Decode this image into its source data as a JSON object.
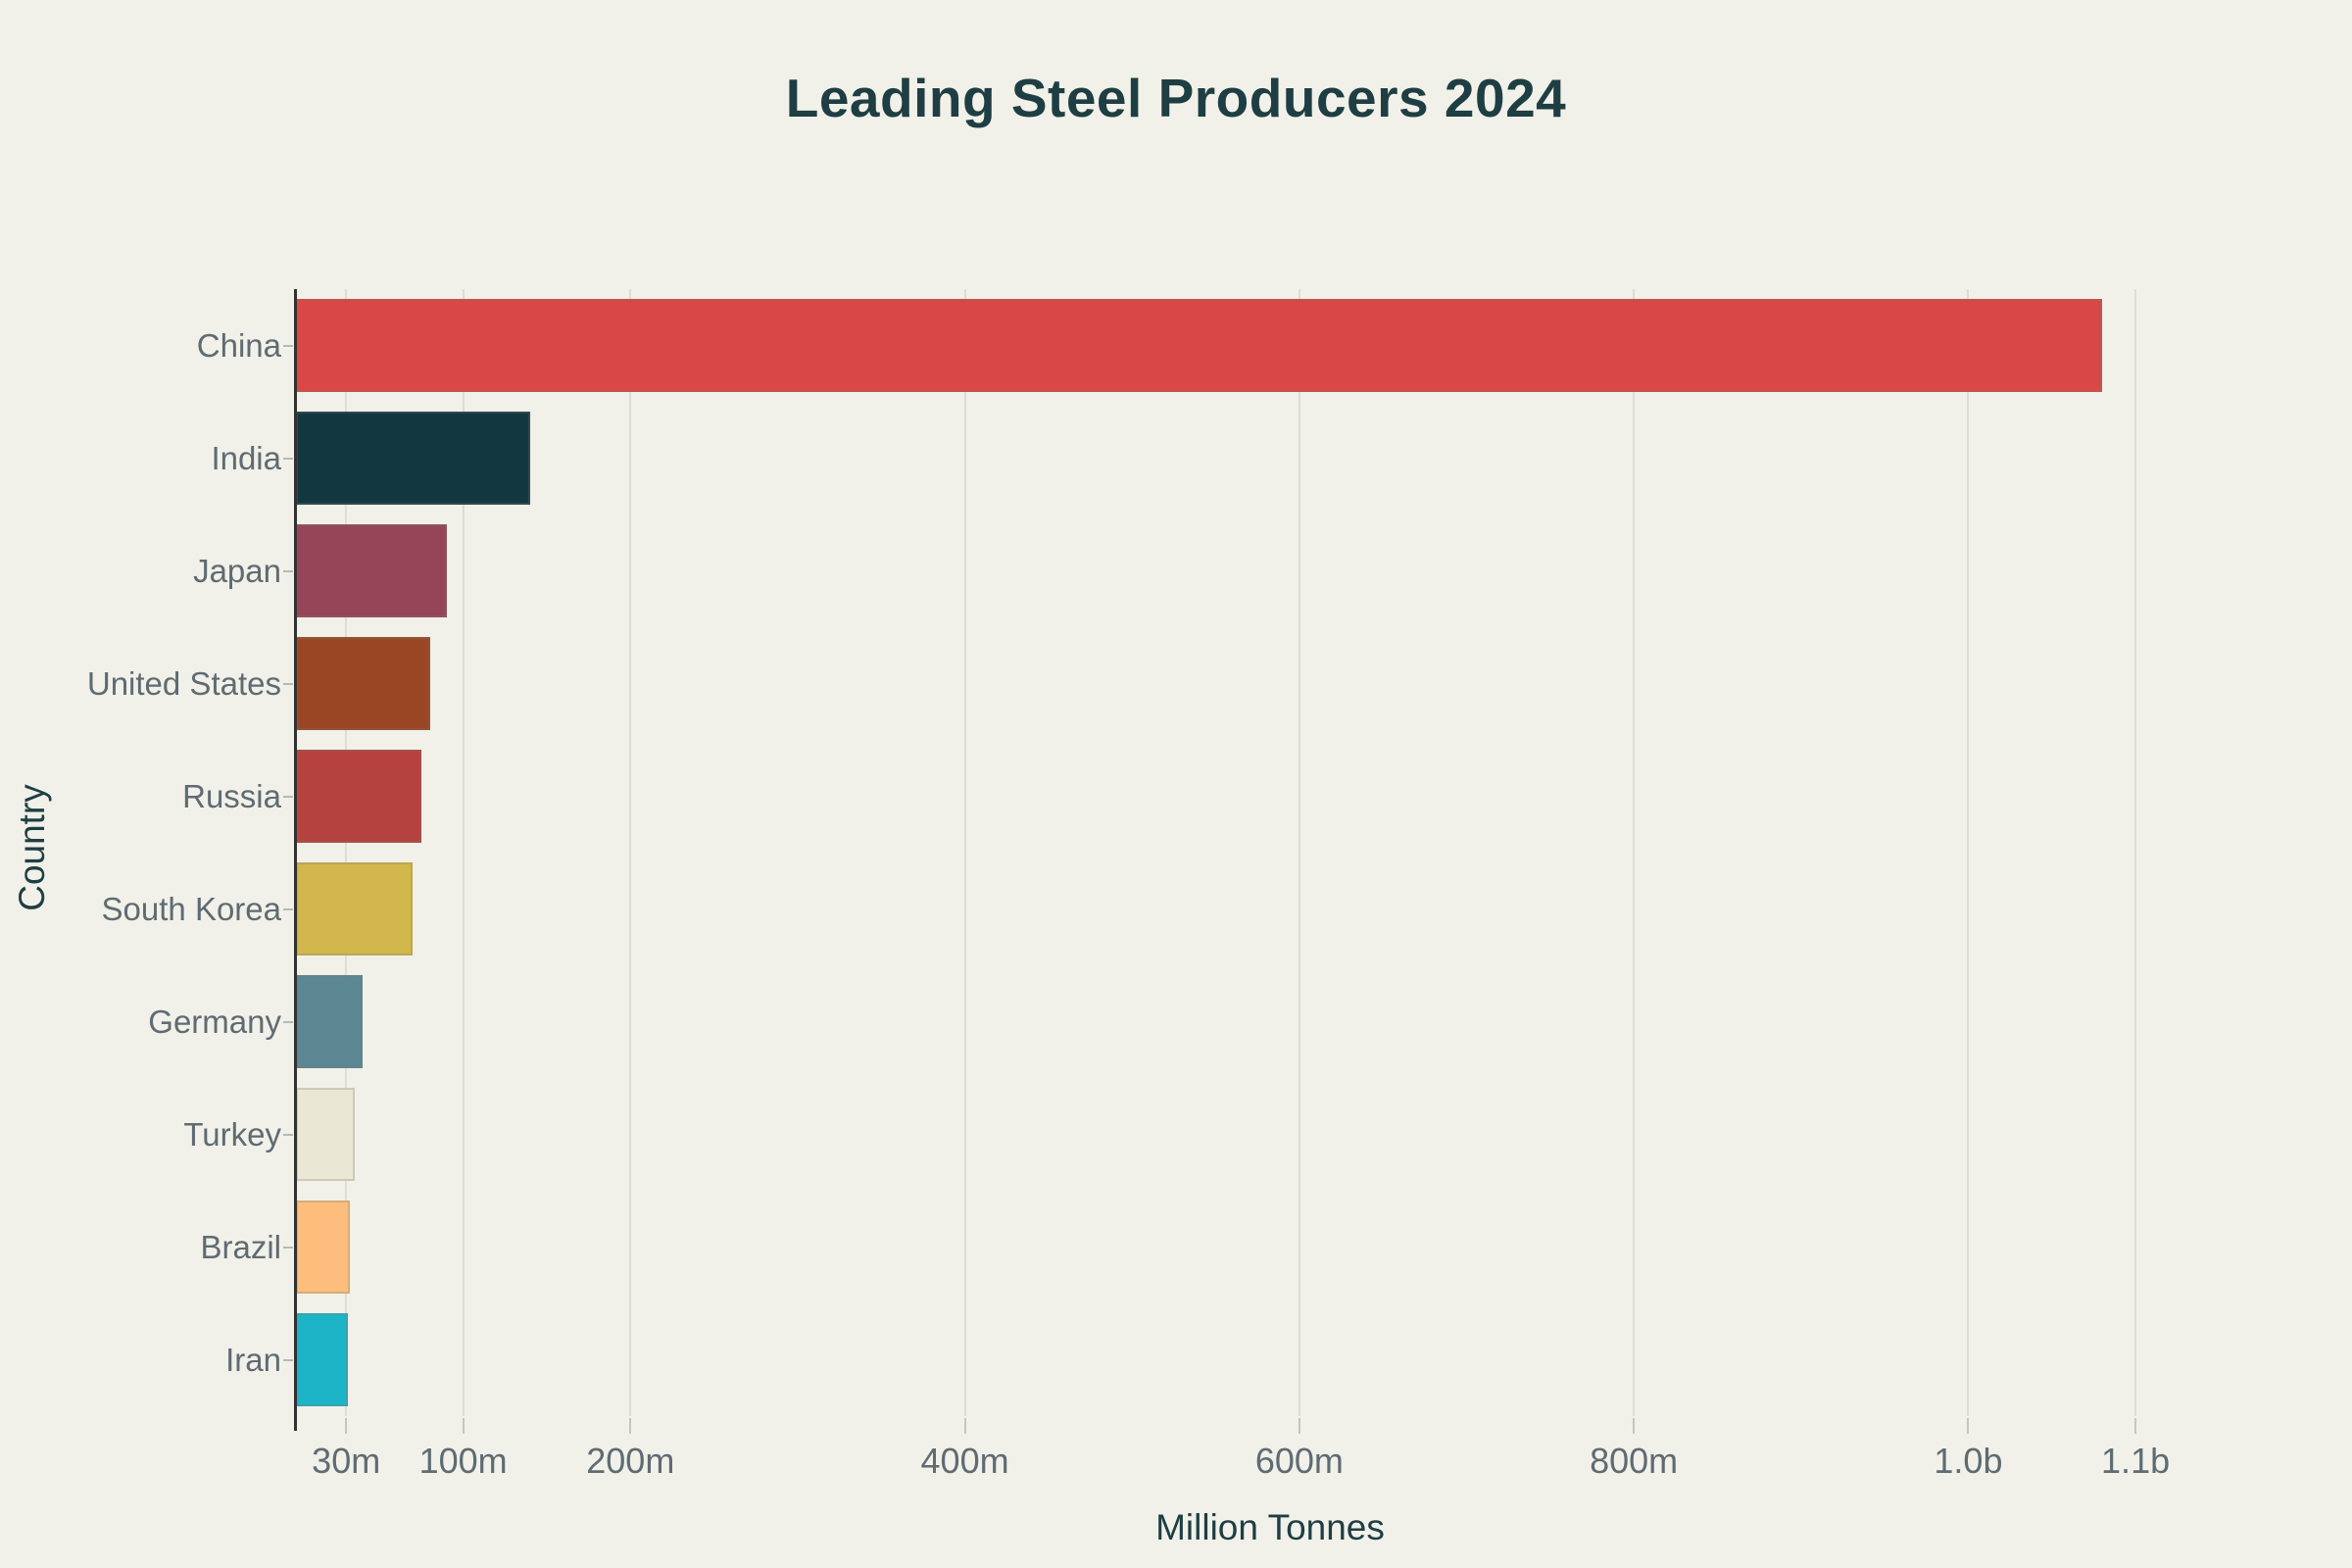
{
  "title": "Leading Steel Producers 2024",
  "colors": {
    "background": "#f1f1e9",
    "title_text": "#1e3e43",
    "axis_title_text": "#1e3e43",
    "tick_label_text": "#5f6b73",
    "grid_line": "#deddd3",
    "y_axis_line": "#323230",
    "tick_mark": "#c6c6bd"
  },
  "chart_data": {
    "type": "bar",
    "orientation": "horizontal",
    "title": "Leading Steel Producers 2024",
    "xlabel": "Million Tonnes",
    "ylabel": "Country",
    "categories": [
      "China",
      "India",
      "Japan",
      "United States",
      "Russia",
      "South Korea",
      "Germany",
      "Turkey",
      "Brazil",
      "Iran"
    ],
    "values": [
      1080,
      140,
      90,
      80,
      75,
      70,
      40,
      35,
      32,
      31
    ],
    "bar_colors": [
      "#d94747",
      "#133740",
      "#964457",
      "#9a4524",
      "#b5423e",
      "#d2b74d",
      "#5b8793",
      "#eae8d4",
      "#fdbe7d",
      "#1eb4c8"
    ],
    "x_tick_values": [
      30,
      100,
      200,
      400,
      600,
      800,
      1000,
      1100
    ],
    "x_tick_labels": [
      "30m",
      "100m",
      "200m",
      "400m",
      "600m",
      "800m",
      "1.0b",
      "1.1b"
    ],
    "xlim": [
      0,
      1165
    ],
    "grid": "vertical",
    "legend": "none"
  }
}
